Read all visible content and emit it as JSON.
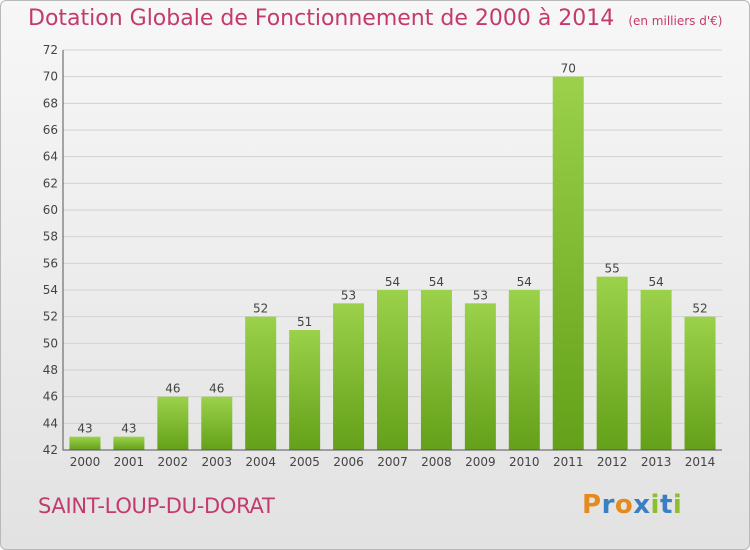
{
  "title": "Dotation Globale de Fonctionnement de 2000 à 2014",
  "unit": "(en milliers d'€)",
  "commune": "SAINT-LOUP-DU-DORAT",
  "logo": {
    "letters": [
      "P",
      "r",
      "o",
      "x",
      "i",
      "t",
      "i"
    ],
    "colors": [
      "#e48a1e",
      "#3a7fc2",
      "#e48a1e",
      "#3a7fc2",
      "#8cbf2a",
      "#3a7fc2",
      "#8cbf2a"
    ]
  },
  "colors": {
    "title": "#c43a6e",
    "bar_light": "#9bd14b",
    "bar_dark": "#64a019",
    "grid": "#d2d2d2",
    "axis": "#555555"
  },
  "chart_data": {
    "type": "bar",
    "categories": [
      "2000",
      "2001",
      "2002",
      "2003",
      "2004",
      "2005",
      "2006",
      "2007",
      "2008",
      "2009",
      "2010",
      "2011",
      "2012",
      "2013",
      "2014"
    ],
    "values": [
      43,
      43,
      46,
      46,
      52,
      51,
      53,
      54,
      54,
      53,
      54,
      70,
      55,
      54,
      52
    ],
    "ylim": [
      42,
      72
    ],
    "yticks": [
      42,
      44,
      46,
      48,
      50,
      52,
      54,
      56,
      58,
      60,
      62,
      64,
      66,
      68,
      70,
      72
    ],
    "grid": true,
    "data_labels": true
  }
}
